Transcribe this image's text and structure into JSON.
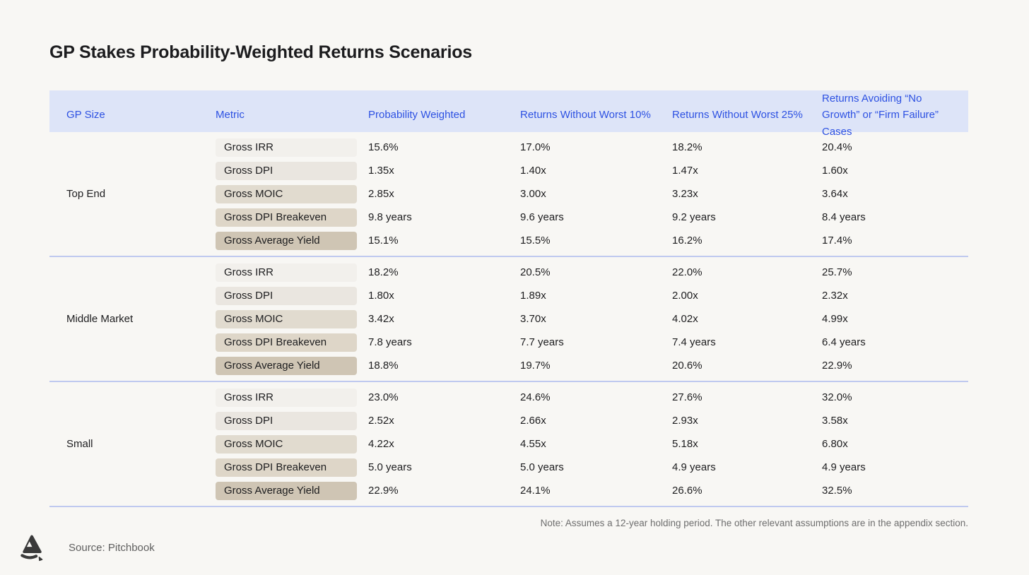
{
  "page": {
    "title": "GP Stakes Probability-Weighted Returns Scenarios",
    "note": "Note: Assumes a 12-year holding period. The other relevant assumptions are in the appendix section.",
    "source": "Source: Pitchbook"
  },
  "footer": {
    "logo_icon": "brand-logo"
  },
  "colors": {
    "background": "#f8f7f4",
    "header_bg": "#dde4f8",
    "header_text": "#2d51e2",
    "divider": "#bfc9ef",
    "body_text": "#1d1d1f",
    "muted_text": "#6e6e6e",
    "logo": "#3a3a3a",
    "pill_shades": [
      "#f2f0ec",
      "#eae6e0",
      "#e1dbcf",
      "#ded6c8",
      "#cfc5b4"
    ]
  },
  "chart_data": {
    "type": "table",
    "title": "GP Stakes Probability-Weighted Returns Scenarios",
    "columns": [
      "GP Size",
      "Metric",
      "Probability Weighted",
      "Returns Without Worst 10%",
      "Returns Without Worst 25%",
      "Returns Avoiding “No Growth” or “Firm Failure” Cases"
    ],
    "row_groups": [
      {
        "gp_size": "Top End",
        "rows": [
          {
            "metric": "Gross IRR",
            "values": [
              "15.6%",
              "17.0%",
              "18.2%",
              "20.4%"
            ]
          },
          {
            "metric": "Gross DPI",
            "values": [
              "1.35x",
              "1.40x",
              "1.47x",
              "1.60x"
            ]
          },
          {
            "metric": "Gross MOIC",
            "values": [
              "2.85x",
              "3.00x",
              "3.23x",
              "3.64x"
            ]
          },
          {
            "metric": "Gross DPI Breakeven",
            "values": [
              "9.8 years",
              "9.6 years",
              "9.2 years",
              "8.4 years"
            ]
          },
          {
            "metric": "Gross Average Yield",
            "values": [
              "15.1%",
              "15.5%",
              "16.2%",
              "17.4%"
            ]
          }
        ]
      },
      {
        "gp_size": "Middle Market",
        "rows": [
          {
            "metric": "Gross IRR",
            "values": [
              "18.2%",
              "20.5%",
              "22.0%",
              "25.7%"
            ]
          },
          {
            "metric": "Gross DPI",
            "values": [
              "1.80x",
              "1.89x",
              "2.00x",
              "2.32x"
            ]
          },
          {
            "metric": "Gross MOIC",
            "values": [
              "3.42x",
              "3.70x",
              "4.02x",
              "4.99x"
            ]
          },
          {
            "metric": "Gross DPI Breakeven",
            "values": [
              "7.8 years",
              "7.7 years",
              "7.4 years",
              "6.4 years"
            ]
          },
          {
            "metric": "Gross Average Yield",
            "values": [
              "18.8%",
              "19.7%",
              "20.6%",
              "22.9%"
            ]
          }
        ]
      },
      {
        "gp_size": "Small",
        "rows": [
          {
            "metric": "Gross IRR",
            "values": [
              "23.0%",
              "24.6%",
              "27.6%",
              "32.0%"
            ]
          },
          {
            "metric": "Gross DPI",
            "values": [
              "2.52x",
              "2.66x",
              "2.93x",
              "3.58x"
            ]
          },
          {
            "metric": "Gross MOIC",
            "values": [
              "4.22x",
              "4.55x",
              "5.18x",
              "6.80x"
            ]
          },
          {
            "metric": "Gross DPI Breakeven",
            "values": [
              "5.0 years",
              "5.0 years",
              "4.9 years",
              "4.9 years"
            ]
          },
          {
            "metric": "Gross Average Yield",
            "values": [
              "22.9%",
              "24.1%",
              "26.6%",
              "32.5%"
            ]
          }
        ]
      }
    ],
    "note": "Note: Assumes a 12-year holding period. The other relevant assumptions are in the appendix section.",
    "source": "Source: Pitchbook"
  }
}
